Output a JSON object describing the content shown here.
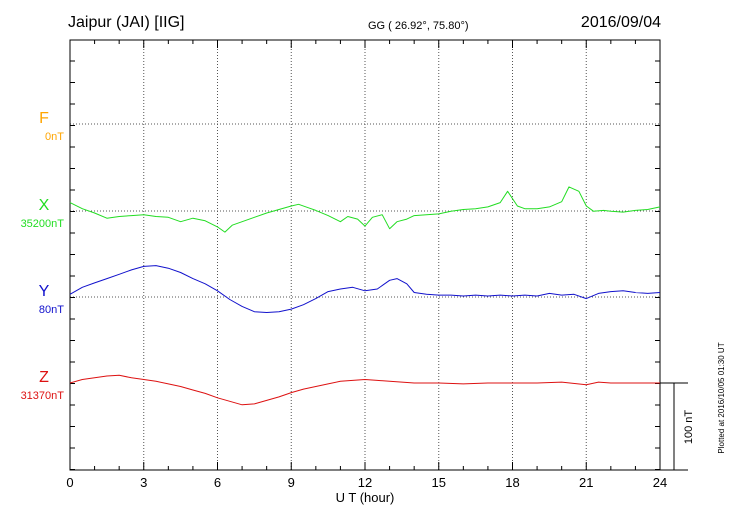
{
  "chart_data": {
    "type": "line",
    "title": "Jaipur (JAI)  [IIG]",
    "coords": "GG ( 26.92°,  75.80°)",
    "date": "2016/09/04",
    "xlabel": "U T (hour)",
    "xlim": [
      0,
      24
    ],
    "xticks": [
      "0",
      "3",
      "6",
      "9",
      "12",
      "15",
      "18",
      "21",
      "24"
    ],
    "plotted_note": "Plotted at 2016/10/05 01:30 UT",
    "scale_label": "100 nT",
    "scale_nT": 100,
    "grid": true,
    "series": [
      {
        "name": "F",
        "baseline": "0nT",
        "color": "#ffa500",
        "x": [],
        "y": []
      },
      {
        "name": "X",
        "baseline": "35200nT",
        "color": "#22dd22",
        "x": [
          0,
          0.5,
          1,
          1.5,
          2,
          2.5,
          3,
          3.5,
          4,
          4.5,
          5,
          5.5,
          6,
          6.3,
          6.6,
          7,
          7.5,
          8,
          8.5,
          9,
          9.3,
          9.7,
          10,
          10.5,
          11,
          11.3,
          11.7,
          12,
          12.3,
          12.7,
          13,
          13.3,
          13.7,
          14,
          14.5,
          15,
          15.5,
          16,
          16.5,
          17,
          17.5,
          17.8,
          18.2,
          18.5,
          19,
          19.5,
          20,
          20.3,
          20.7,
          21,
          21.3,
          21.7,
          22,
          22.5,
          23,
          23.5,
          24
        ],
        "y": [
          12,
          5,
          0,
          -6,
          -4,
          -3,
          -2,
          -4,
          -5,
          -10,
          -6,
          -9,
          -16,
          -22,
          -14,
          -10,
          -5,
          0,
          4,
          8,
          10,
          6,
          3,
          -3,
          -10,
          -4,
          -7,
          -15,
          -5,
          -2,
          -18,
          -10,
          -7,
          -3,
          -2,
          -1,
          2,
          4,
          5,
          7,
          12,
          25,
          8,
          5,
          5,
          7,
          13,
          30,
          25,
          8,
          2,
          3,
          2,
          1,
          3,
          4,
          7
        ]
      },
      {
        "name": "Y",
        "baseline": "80nT",
        "color": "#1111cc",
        "x": [
          0,
          0.5,
          1,
          1.5,
          2,
          2.5,
          3,
          3.5,
          4,
          4.5,
          5,
          5.5,
          6,
          6.5,
          7,
          7.5,
          8,
          8.5,
          9,
          9.5,
          10,
          10.5,
          11,
          11.5,
          12,
          12.5,
          13,
          13.3,
          13.7,
          14,
          14.5,
          15,
          15.5,
          16,
          16.5,
          17,
          17.5,
          18,
          18.5,
          19,
          19.5,
          20,
          20.5,
          21,
          21.5,
          22,
          22.5,
          23,
          23.5,
          24
        ],
        "y": [
          2,
          10,
          15,
          20,
          25,
          30,
          34,
          35,
          32,
          27,
          20,
          14,
          6,
          -4,
          -12,
          -18,
          -19,
          -18,
          -15,
          -10,
          -3,
          5,
          8,
          10,
          6,
          8,
          18,
          20,
          14,
          4,
          2,
          1,
          1,
          0,
          1,
          0,
          1,
          0,
          1,
          0,
          3,
          1,
          2,
          -3,
          3,
          5,
          6,
          4,
          3,
          4
        ]
      },
      {
        "name": "Z",
        "baseline": "31370nT",
        "color": "#dd1111",
        "x": [
          0,
          0.5,
          1,
          1.5,
          2,
          2.5,
          3,
          3.5,
          4,
          4.5,
          5,
          5.5,
          6,
          6.5,
          7,
          7.5,
          8,
          8.5,
          9,
          9.5,
          10,
          10.5,
          11,
          11.5,
          12,
          12.5,
          13,
          13.5,
          14,
          15,
          16,
          17,
          18,
          18.5,
          19,
          20,
          21,
          21.5,
          22,
          23,
          24
        ],
        "y": [
          0,
          4,
          6,
          8,
          9,
          6,
          4,
          2,
          -1,
          -4,
          -8,
          -12,
          -17,
          -21,
          -25,
          -24,
          -20,
          -16,
          -11,
          -7,
          -4,
          -1,
          2,
          3,
          4,
          3,
          2,
          1,
          0,
          0,
          -1,
          0,
          0,
          0,
          0,
          1,
          -2,
          1,
          0,
          0,
          0
        ]
      }
    ]
  }
}
